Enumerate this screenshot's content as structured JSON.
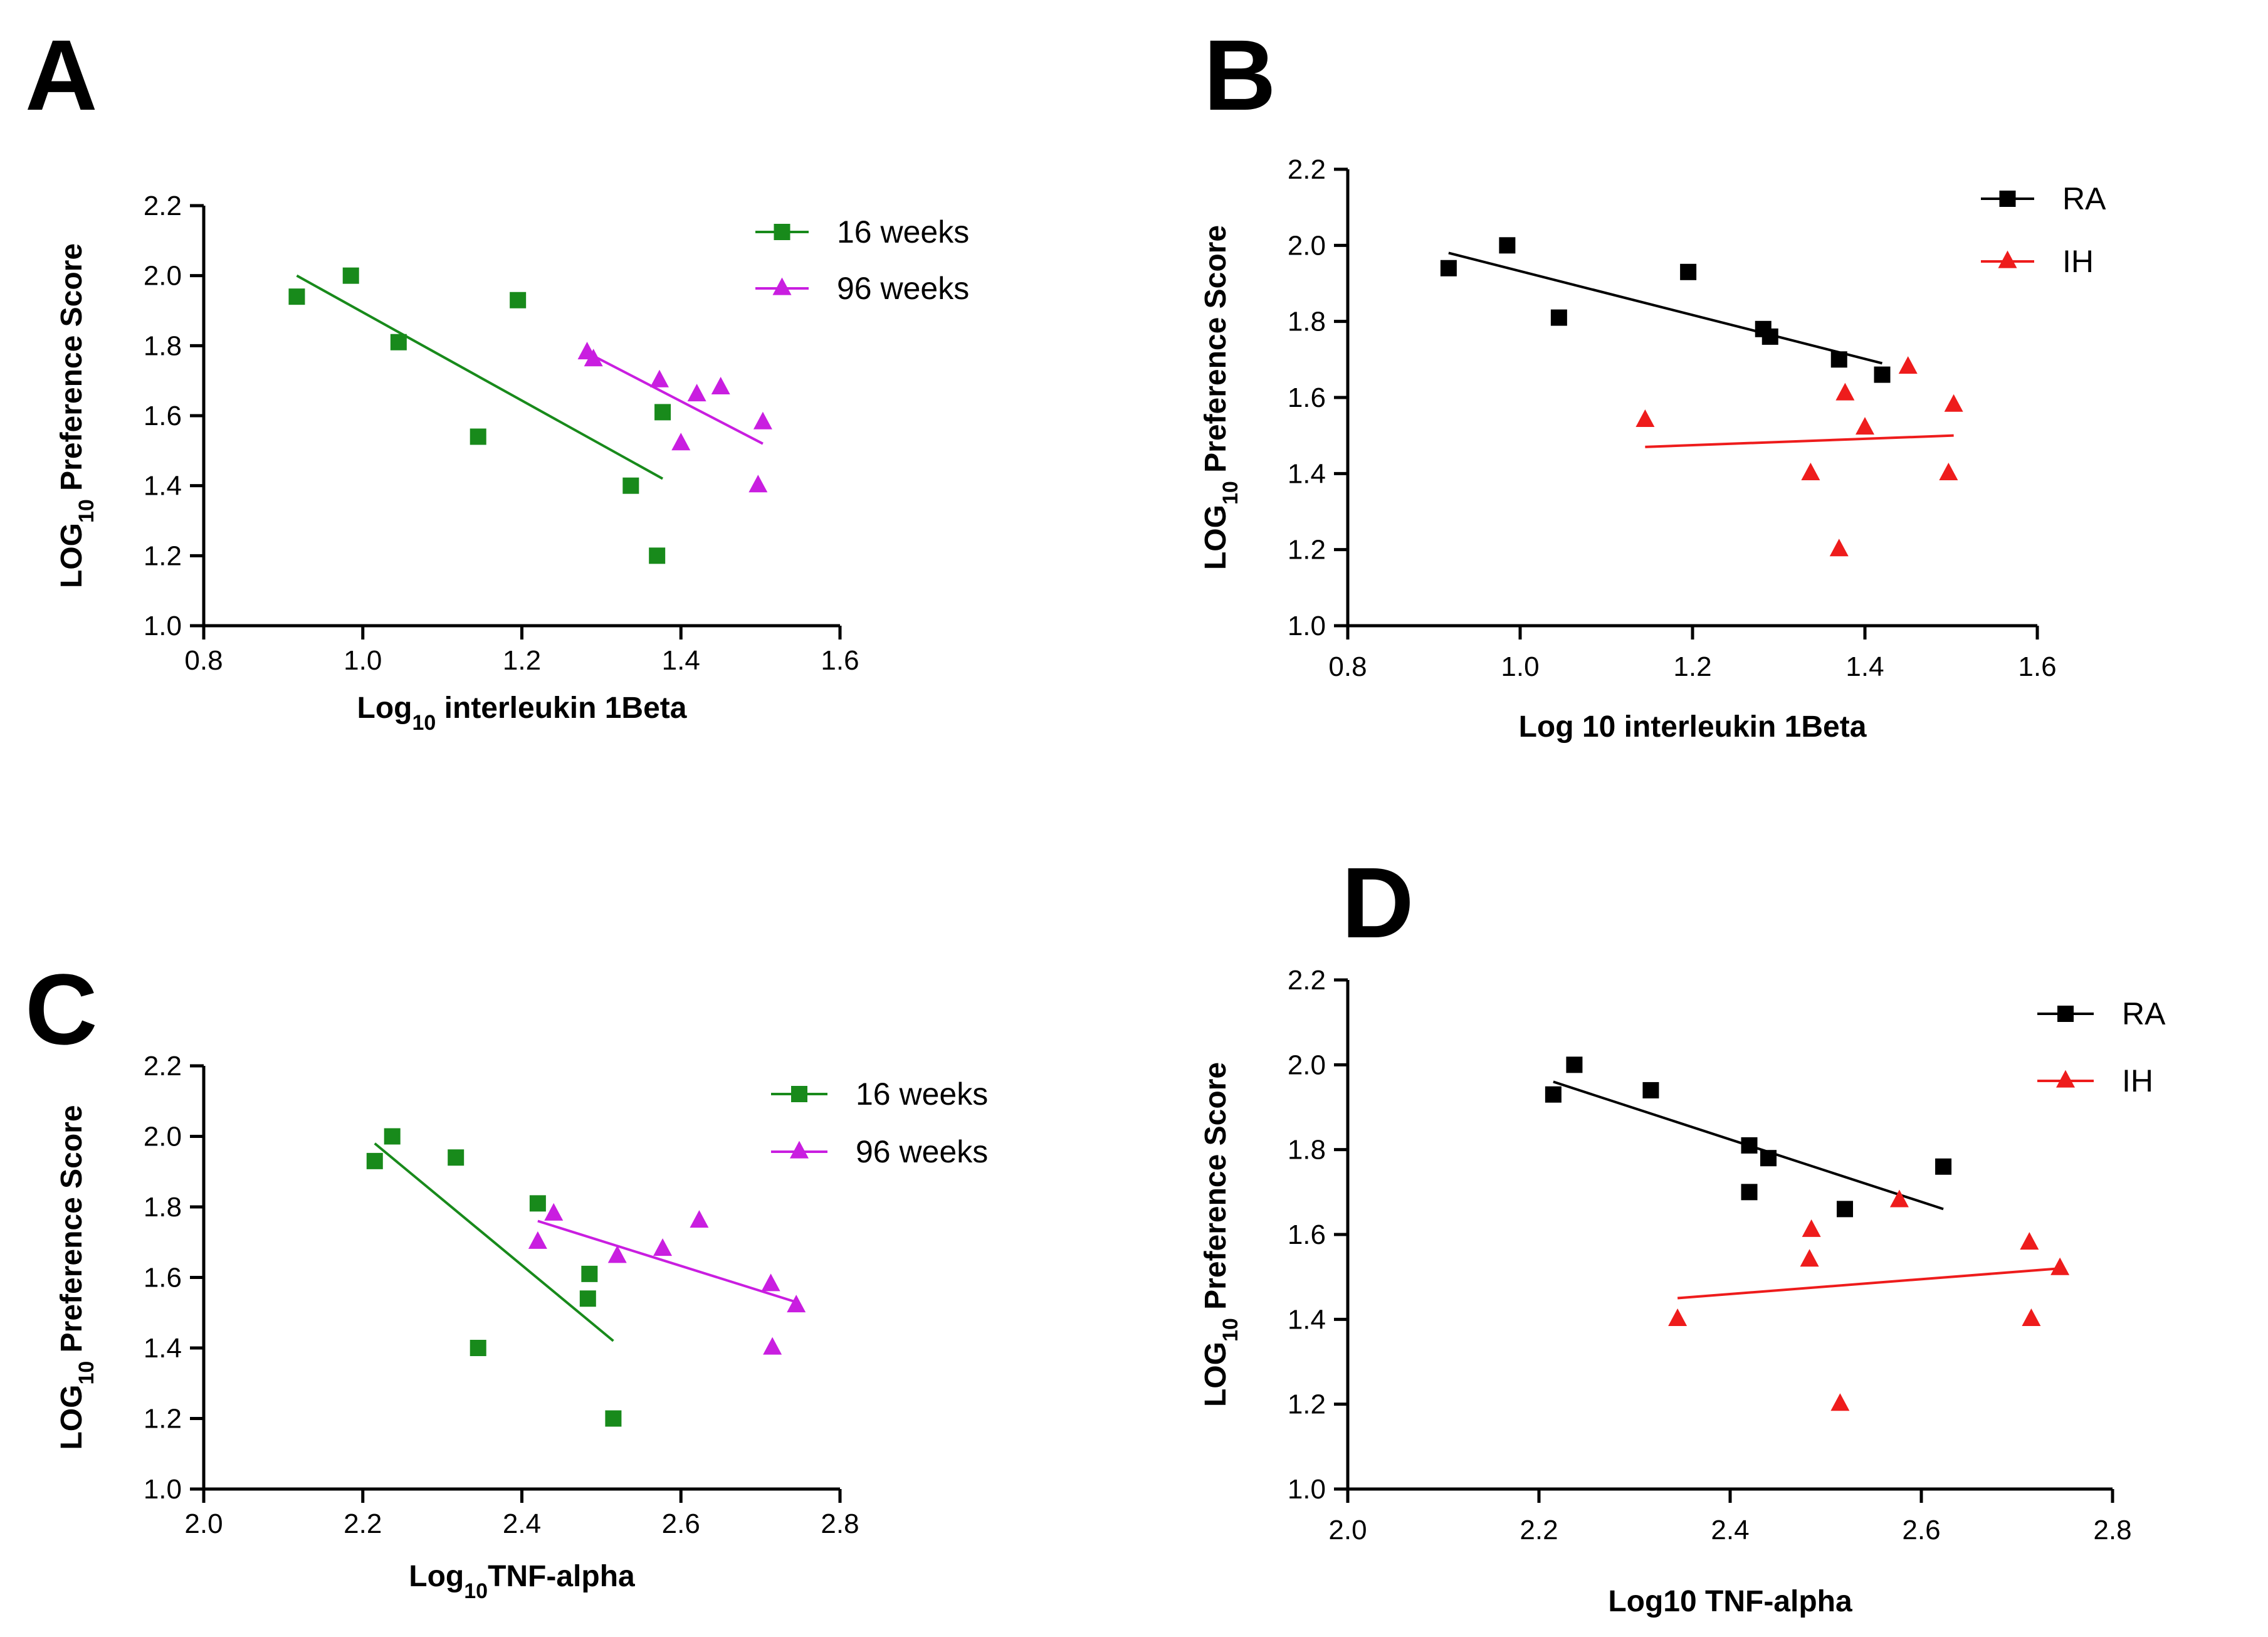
{
  "figure": {
    "panels": [
      "A",
      "B",
      "C",
      "D"
    ]
  },
  "chart_data": [
    {
      "panel": "A",
      "type": "scatter",
      "xlabel_main": "Log",
      "xlabel_sub": "10",
      "xlabel_rest": " interleukin 1Beta",
      "ylabel_main": "LOG",
      "ylabel_sub": "10",
      "ylabel_rest": " Preference Score",
      "xlim": [
        0.8,
        1.6
      ],
      "ylim": [
        1.0,
        2.2
      ],
      "xticks": [
        0.8,
        1.0,
        1.2,
        1.4,
        1.6
      ],
      "xtick_labels": [
        "0.8",
        "1.0",
        "1.2",
        "1.4",
        "1.6"
      ],
      "yticks": [
        1.0,
        1.2,
        1.4,
        1.6,
        1.8,
        2.0,
        2.2
      ],
      "ytick_labels": [
        "1.0",
        "1.2",
        "1.4",
        "1.6",
        "1.8",
        "2.0",
        "2.2"
      ],
      "legend_position": "top-right",
      "series": [
        {
          "name": "16 weeks",
          "color": "#188a1b",
          "marker": "square",
          "x": [
            0.917,
            0.985,
            1.045,
            1.145,
            1.195,
            1.337,
            1.37,
            1.377
          ],
          "y": [
            1.94,
            2.0,
            1.81,
            1.54,
            1.93,
            1.4,
            1.2,
            1.61
          ],
          "fit": {
            "x": [
              0.917,
              1.377
            ],
            "y": [
              2.0,
              1.42
            ]
          }
        },
        {
          "name": "96 weeks",
          "color": "#c91ee0",
          "marker": "triangle",
          "x": [
            1.282,
            1.29,
            1.373,
            1.4,
            1.42,
            1.45,
            1.497,
            1.503
          ],
          "y": [
            1.78,
            1.76,
            1.7,
            1.52,
            1.66,
            1.68,
            1.4,
            1.58
          ],
          "fit": {
            "x": [
              1.282,
              1.503
            ],
            "y": [
              1.78,
              1.52
            ]
          }
        }
      ]
    },
    {
      "panel": "B",
      "type": "scatter",
      "xlabel_main": "Log 10 interleukin 1Beta",
      "xlabel_sub": "",
      "xlabel_rest": "",
      "ylabel_main": "LOG",
      "ylabel_sub": "10",
      "ylabel_rest": " Preference Score",
      "xlim": [
        0.8,
        1.6
      ],
      "ylim": [
        1.0,
        2.2
      ],
      "xticks": [
        0.8,
        1.0,
        1.2,
        1.4,
        1.6
      ],
      "xtick_labels": [
        "0.8",
        "1.0",
        "1.2",
        "1.4",
        "1.6"
      ],
      "yticks": [
        1.0,
        1.2,
        1.4,
        1.6,
        1.8,
        2.0,
        2.2
      ],
      "ytick_labels": [
        "1.0",
        "1.2",
        "1.4",
        "1.6",
        "1.8",
        "2.0",
        "2.2"
      ],
      "legend_position": "top-right",
      "series": [
        {
          "name": "RA",
          "color": "#000000",
          "marker": "square",
          "x": [
            0.917,
            0.985,
            1.045,
            1.195,
            1.282,
            1.29,
            1.37,
            1.42
          ],
          "y": [
            1.94,
            2.0,
            1.81,
            1.93,
            1.78,
            1.76,
            1.7,
            1.66
          ],
          "fit": {
            "x": [
              0.917,
              1.42
            ],
            "y": [
              1.98,
              1.69
            ]
          }
        },
        {
          "name": "IH",
          "color": "#ee1c1c",
          "marker": "triangle",
          "x": [
            1.145,
            1.337,
            1.37,
            1.377,
            1.4,
            1.45,
            1.497,
            1.503
          ],
          "y": [
            1.54,
            1.4,
            1.2,
            1.61,
            1.52,
            1.68,
            1.4,
            1.58
          ],
          "fit": {
            "x": [
              1.145,
              1.503
            ],
            "y": [
              1.47,
              1.5
            ]
          }
        }
      ]
    },
    {
      "panel": "C",
      "type": "scatter",
      "xlabel_main": "Log",
      "xlabel_sub": "10",
      "xlabel_rest": "TNF-alpha",
      "ylabel_main": "LOG",
      "ylabel_sub": "10",
      "ylabel_rest": " Preference Score",
      "xlim": [
        2.0,
        2.8
      ],
      "ylim": [
        1.0,
        2.2
      ],
      "xticks": [
        2.0,
        2.2,
        2.4,
        2.6,
        2.8
      ],
      "xtick_labels": [
        "2.0",
        "2.2",
        "2.4",
        "2.6",
        "2.8"
      ],
      "yticks": [
        1.0,
        1.2,
        1.4,
        1.6,
        1.8,
        2.0,
        2.2
      ],
      "ytick_labels": [
        "1.0",
        "1.2",
        "1.4",
        "1.6",
        "1.8",
        "2.0",
        "2.2"
      ],
      "legend_position": "top-right",
      "series": [
        {
          "name": "16 weeks",
          "color": "#188a1b",
          "marker": "square",
          "x": [
            2.215,
            2.237,
            2.317,
            2.345,
            2.42,
            2.483,
            2.485,
            2.515
          ],
          "y": [
            1.93,
            2.0,
            1.94,
            1.4,
            1.81,
            1.54,
            1.61,
            1.2
          ],
          "fit": {
            "x": [
              2.215,
              2.515
            ],
            "y": [
              1.98,
              1.42
            ]
          }
        },
        {
          "name": "96 weeks",
          "color": "#c91ee0",
          "marker": "triangle",
          "x": [
            2.42,
            2.44,
            2.52,
            2.577,
            2.623,
            2.713,
            2.715,
            2.745
          ],
          "y": [
            1.7,
            1.78,
            1.66,
            1.68,
            1.76,
            1.58,
            1.4,
            1.52
          ],
          "fit": {
            "x": [
              2.42,
              2.745
            ],
            "y": [
              1.76,
              1.53
            ]
          }
        }
      ]
    },
    {
      "panel": "D",
      "type": "scatter",
      "xlabel_main": "Log10 TNF-alpha",
      "xlabel_sub": "",
      "xlabel_rest": "",
      "ylabel_main": "LOG",
      "ylabel_sub": "10",
      "ylabel_rest": " Preference Score",
      "xlim": [
        2.0,
        2.8
      ],
      "ylim": [
        1.0,
        2.2
      ],
      "xticks": [
        2.0,
        2.2,
        2.4,
        2.6,
        2.8
      ],
      "xtick_labels": [
        "2.0",
        "2.2",
        "2.4",
        "2.6",
        "2.8"
      ],
      "yticks": [
        1.0,
        1.2,
        1.4,
        1.6,
        1.8,
        2.0,
        2.2
      ],
      "ytick_labels": [
        "1.0",
        "1.2",
        "1.4",
        "1.6",
        "1.8",
        "2.0",
        "2.2"
      ],
      "legend_position": "top-right",
      "series": [
        {
          "name": "RA",
          "color": "#000000",
          "marker": "square",
          "x": [
            2.215,
            2.237,
            2.317,
            2.42,
            2.42,
            2.44,
            2.52,
            2.623
          ],
          "y": [
            1.93,
            2.0,
            1.94,
            1.81,
            1.7,
            1.78,
            1.66,
            1.76
          ],
          "fit": {
            "x": [
              2.215,
              2.623
            ],
            "y": [
              1.96,
              1.66
            ]
          }
        },
        {
          "name": "IH",
          "color": "#ee1c1c",
          "marker": "triangle",
          "x": [
            2.345,
            2.483,
            2.485,
            2.515,
            2.577,
            2.713,
            2.715,
            2.745
          ],
          "y": [
            1.4,
            1.54,
            1.61,
            1.2,
            1.68,
            1.58,
            1.4,
            1.52
          ],
          "fit": {
            "x": [
              2.345,
              2.745
            ],
            "y": [
              1.45,
              1.52
            ]
          }
        }
      ]
    }
  ]
}
